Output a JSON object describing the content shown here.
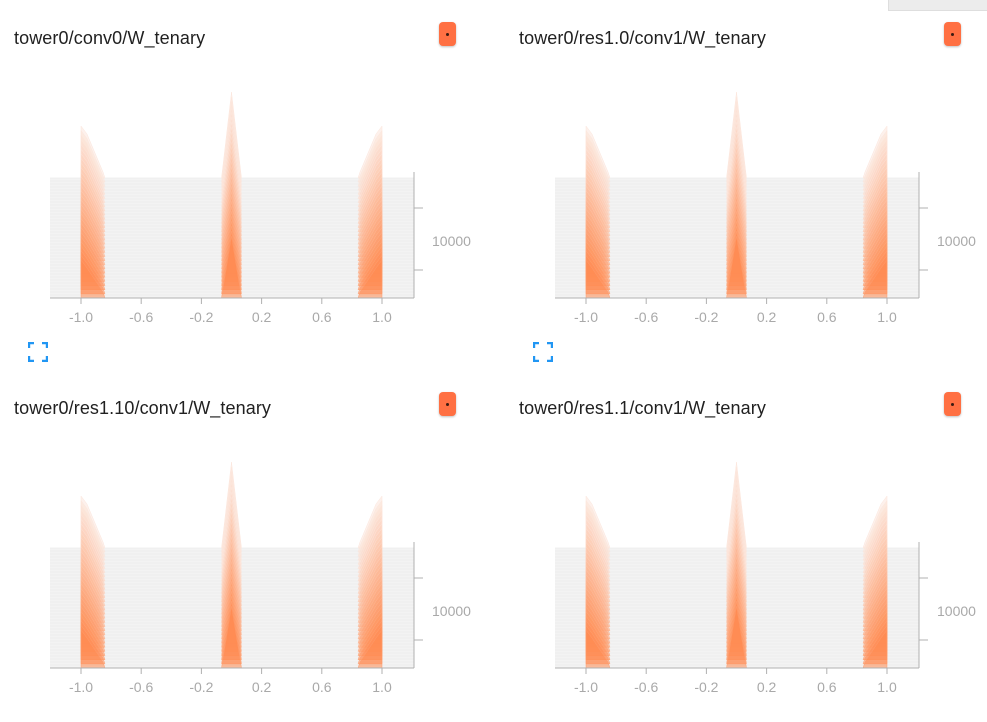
{
  "charts": [
    {
      "title": "tower0/conv0/W_tenary",
      "show_expand": true
    },
    {
      "title": "tower0/res1.0/conv1/W_tenary",
      "show_expand": true
    },
    {
      "title": "tower0/res1.10/conv1/W_tenary",
      "show_expand": false
    },
    {
      "title": "tower0/res1.1/conv1/W_tenary",
      "show_expand": false
    }
  ],
  "colors": {
    "accent": "#ff7043",
    "expand": "#2196f3"
  },
  "chart_data": [
    {
      "type": "area",
      "mode": "offset",
      "title": "tower0/conv0/W_tenary",
      "x_ticks": [
        "-1.0",
        "-0.6",
        "-0.2",
        "0.2",
        "0.6",
        "1.0"
      ],
      "xlim": [
        -1.0,
        1.0
      ],
      "y_ticks": [
        "10000"
      ],
      "series_shape": {
        "peaks_at": [
          -1.0,
          0.0,
          1.0
        ]
      }
    },
    {
      "type": "area",
      "mode": "offset",
      "title": "tower0/res1.0/conv1/W_tenary",
      "x_ticks": [
        "-1.0",
        "-0.6",
        "-0.2",
        "0.2",
        "0.6",
        "1.0"
      ],
      "xlim": [
        -1.0,
        1.0
      ],
      "y_ticks": [
        "10000"
      ],
      "series_shape": {
        "peaks_at": [
          -1.0,
          0.0,
          1.0
        ]
      }
    },
    {
      "type": "area",
      "mode": "offset",
      "title": "tower0/res1.10/conv1/W_tenary",
      "x_ticks": [
        "-1.0",
        "-0.6",
        "-0.2",
        "0.2",
        "0.6",
        "1.0"
      ],
      "xlim": [
        -1.0,
        1.0
      ],
      "y_ticks": [
        "10000"
      ],
      "series_shape": {
        "peaks_at": [
          -1.0,
          0.0,
          1.0
        ]
      }
    },
    {
      "type": "area",
      "mode": "offset",
      "title": "tower0/res1.1/conv1/W_tenary",
      "x_ticks": [
        "-1.0",
        "-0.6",
        "-0.2",
        "0.2",
        "0.6",
        "1.0"
      ],
      "xlim": [
        -1.0,
        1.0
      ],
      "y_ticks": [
        "10000"
      ],
      "series_shape": {
        "peaks_at": [
          -1.0,
          0.0,
          1.0
        ]
      }
    }
  ]
}
